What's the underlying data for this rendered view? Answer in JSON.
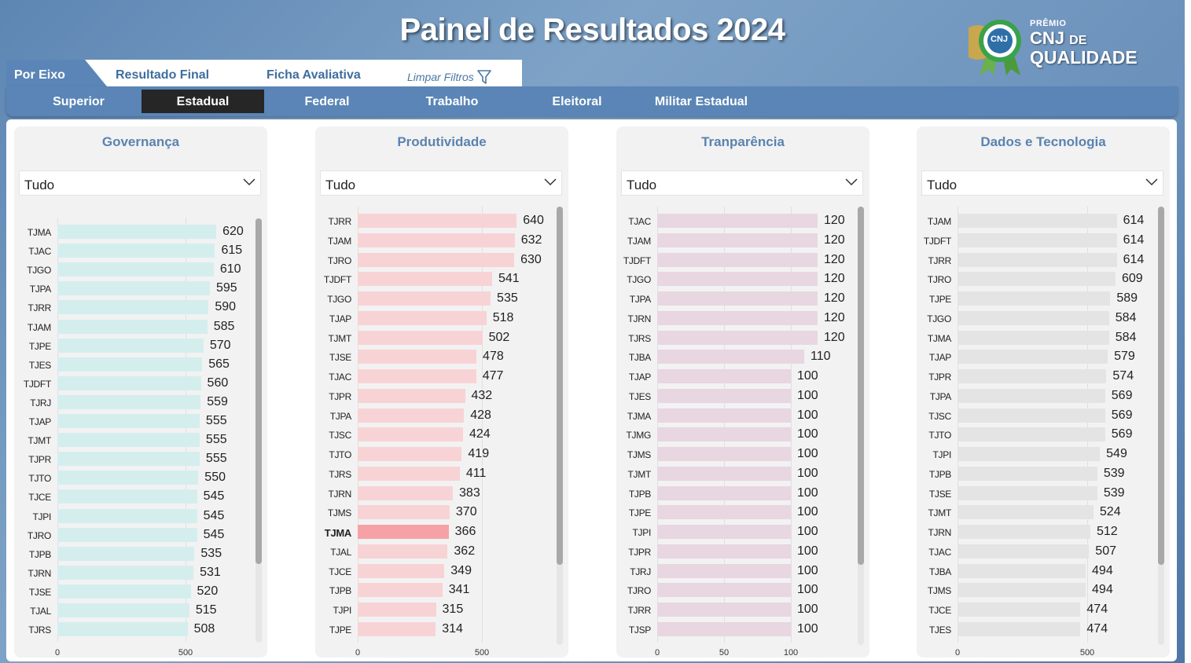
{
  "header": {
    "title": "Painel de Resultados 2024",
    "logo": {
      "line1": "PRÊMIO",
      "cnj": "CNJ",
      "de": "DE",
      "qualidade": "QUALIDADE",
      "medal_text": "CNJ"
    }
  },
  "tabs": {
    "active": "Por Eixo",
    "items": [
      "Resultado Final",
      "Ficha Avaliativa"
    ],
    "clear_filters": "Limpar Filtros"
  },
  "segments": {
    "items": [
      "Superior",
      "Estadual",
      "Federal",
      "Trabalho",
      "Eleitoral",
      "Militar Estadual"
    ],
    "active_index": 1
  },
  "colors": {
    "governanca": "#d4eeee",
    "produtividade": "#f8d3d6",
    "produtividade_highlight": "#f6a1a6",
    "transparencia": "#e8d6e1",
    "dados": "#e4e4e4",
    "accent": "#5a85b6",
    "title_blue": "#5a83b0"
  },
  "panels": [
    {
      "title": "Governança",
      "dropdown": "Tudo",
      "chart_data": {
        "type": "bar",
        "categories": [
          "TJMA",
          "TJAC",
          "TJGO",
          "TJPA",
          "TJRR",
          "TJAM",
          "TJPE",
          "TJES",
          "TJDFT",
          "TJRJ",
          "TJAP",
          "TJMT",
          "TJPR",
          "TJTO",
          "TJCE",
          "TJPI",
          "TJRO",
          "TJPB",
          "TJRN",
          "TJSE",
          "TJAL",
          "TJRS"
        ],
        "values": [
          620,
          615,
          610,
          595,
          590,
          585,
          570,
          565,
          560,
          559,
          555,
          555,
          555,
          550,
          545,
          545,
          545,
          535,
          531,
          520,
          515,
          508
        ],
        "xticks": [
          0,
          500
        ],
        "xmax": 650,
        "highlight": null
      }
    },
    {
      "title": "Produtividade",
      "dropdown": "Tudo",
      "chart_data": {
        "type": "bar",
        "categories": [
          "TJRR",
          "TJAM",
          "TJRO",
          "TJDFT",
          "TJGO",
          "TJAP",
          "TJMT",
          "TJSE",
          "TJAC",
          "TJPR",
          "TJPA",
          "TJSC",
          "TJTO",
          "TJRS",
          "TJRN",
          "TJMS",
          "TJMA",
          "TJAL",
          "TJCE",
          "TJPB",
          "TJPI",
          "TJPE"
        ],
        "values": [
          640,
          632,
          630,
          541,
          535,
          518,
          502,
          478,
          477,
          432,
          428,
          424,
          419,
          411,
          383,
          370,
          366,
          362,
          349,
          341,
          315,
          314
        ],
        "xticks": [
          0,
          500
        ],
        "xmax": 650,
        "highlight": "TJMA"
      }
    },
    {
      "title": "Tranparência",
      "dropdown": "Tudo",
      "chart_data": {
        "type": "bar",
        "categories": [
          "TJAC",
          "TJAM",
          "TJDFT",
          "TJGO",
          "TJPA",
          "TJRN",
          "TJRS",
          "TJBA",
          "TJAP",
          "TJES",
          "TJMA",
          "TJMG",
          "TJMS",
          "TJMT",
          "TJPB",
          "TJPE",
          "TJPI",
          "TJPR",
          "TJRJ",
          "TJRO",
          "TJRR",
          "TJSP"
        ],
        "values": [
          120,
          120,
          120,
          120,
          120,
          120,
          120,
          110,
          100,
          100,
          100,
          100,
          100,
          100,
          100,
          100,
          100,
          100,
          100,
          100,
          100,
          100
        ],
        "xticks": [
          0,
          50,
          100
        ],
        "xmax": 122,
        "highlight": null
      }
    },
    {
      "title": "Dados e Tecnologia",
      "dropdown": "Tudo",
      "chart_data": {
        "type": "bar",
        "categories": [
          "TJAM",
          "TJDFT",
          "TJRR",
          "TJRO",
          "TJPE",
          "TJGO",
          "TJMA",
          "TJAP",
          "TJPR",
          "TJPA",
          "TJSC",
          "TJTO",
          "TJPI",
          "TJPB",
          "TJSE",
          "TJMT",
          "TJRN",
          "TJAC",
          "TJBA",
          "TJMS",
          "TJCE",
          "TJES"
        ],
        "values": [
          614,
          614,
          614,
          609,
          589,
          584,
          584,
          579,
          574,
          569,
          569,
          569,
          549,
          539,
          539,
          524,
          512,
          507,
          494,
          494,
          474,
          474
        ],
        "xticks": [
          0,
          500
        ],
        "xmax": 620,
        "highlight": null
      }
    }
  ]
}
